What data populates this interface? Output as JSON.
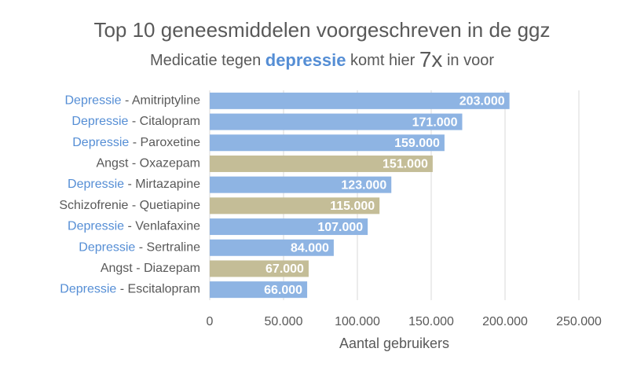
{
  "chart_data": {
    "type": "barh",
    "title": "Top 10 geneesmiddelen voorgeschreven in de ggz",
    "subtitle": [
      "Medicatie tegen ",
      "depressie",
      " komt hier ",
      "7x",
      " in voor"
    ],
    "groups": [
      "Depressie",
      "Depressie",
      "Depressie",
      "Angst",
      "Depressie",
      "Schizofrenie",
      "Depressie",
      "Depressie",
      "Angst",
      "Depressie"
    ],
    "separator": " - ",
    "categories": [
      "Amitriptyline",
      "Citalopram",
      "Paroxetine",
      "Oxazepam",
      "Mirtazapine",
      "Quetiapine",
      "Venlafaxine",
      "Sertraline",
      "Diazepam",
      "Escitalopram"
    ],
    "values": [
      203000,
      171000,
      159000,
      151000,
      123000,
      115000,
      107000,
      84000,
      67000,
      66000
    ],
    "value_labels": [
      "203.000",
      "171.000",
      "159.000",
      "151.000",
      "123.000",
      "115.000",
      "107.000",
      "84.000",
      "67.000",
      "66.000"
    ],
    "colors": [
      "#8eb4e3",
      "#8eb4e3",
      "#8eb4e3",
      "#c4bd97",
      "#8eb4e3",
      "#c4bd97",
      "#8eb4e3",
      "#8eb4e3",
      "#c4bd97",
      "#8eb4e3"
    ],
    "label_colors": [
      "#558ed5",
      "#558ed5",
      "#558ed5",
      "#595959",
      "#558ed5",
      "#595959",
      "#558ed5",
      "#558ed5",
      "#595959",
      "#558ed5"
    ],
    "xlim": [
      0,
      250000
    ],
    "xticks": [
      0,
      {
        "value": 50000,
        "label": "50.000"
      },
      {
        "value": 100000,
        "label": "100.000"
      },
      {
        "value": 150000,
        "label": "150.000"
      },
      {
        "value": 200000,
        "label": "200.000"
      },
      {
        "value": 250000,
        "label": "250.000"
      }
    ],
    "xlabel": "Aantal gebruikers",
    "grid": true
  }
}
